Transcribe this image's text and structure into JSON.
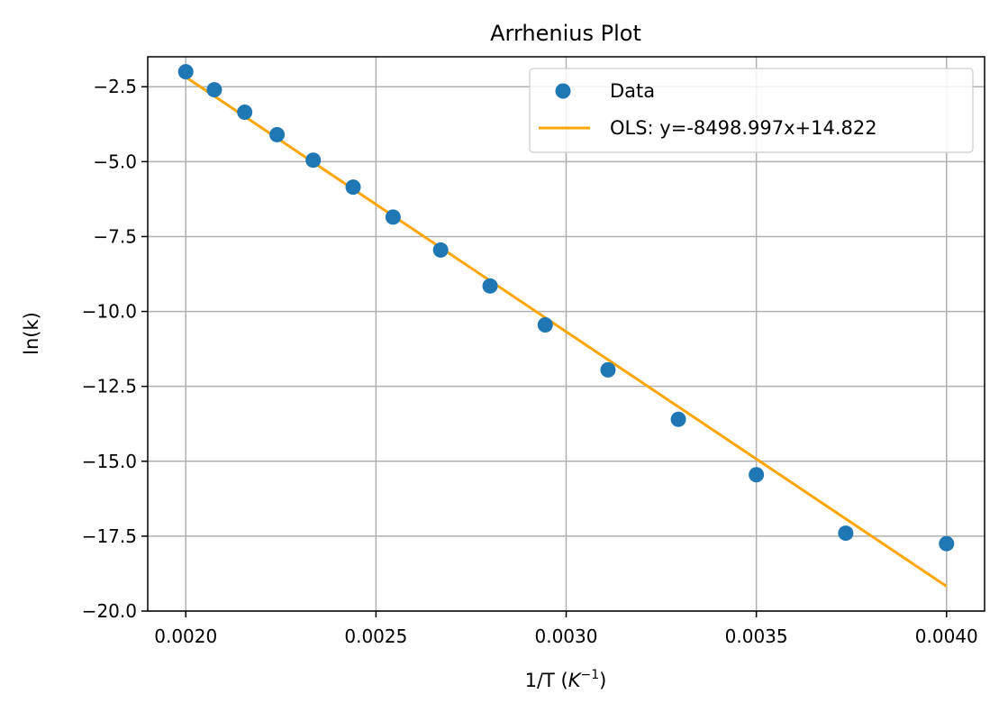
{
  "chart_data": {
    "type": "scatter",
    "title": "Arrhenius Plot",
    "xlabel": "1/T (K⁻¹)",
    "xlabel_parts": {
      "main": "1/T (",
      "italic": "K",
      "sup": "−1",
      "close": ")"
    },
    "ylabel": "ln(k)",
    "xlim": [
      0.0019,
      0.0041
    ],
    "ylim": [
      -20.0,
      -1.5
    ],
    "xticks": [
      0.002,
      0.0025,
      0.003,
      0.0035,
      0.004
    ],
    "xtick_labels": [
      "0.0020",
      "0.0025",
      "0.0030",
      "0.0035",
      "0.0040"
    ],
    "yticks": [
      -2.5,
      -5.0,
      -7.5,
      -10.0,
      -12.5,
      -15.0,
      -17.5,
      -20.0
    ],
    "ytick_labels": [
      "−2.5",
      "−5.0",
      "−7.5",
      "−10.0",
      "−12.5",
      "−15.0",
      "−17.5",
      "−20.0"
    ],
    "grid": true,
    "legend_position": "top-right",
    "series": [
      {
        "name": "Data",
        "kind": "scatter",
        "color": "#1f77b4",
        "points": [
          {
            "x": 0.002,
            "y": -2.0
          },
          {
            "x": 0.002075,
            "y": -2.6
          },
          {
            "x": 0.002155,
            "y": -3.35
          },
          {
            "x": 0.00224,
            "y": -4.1
          },
          {
            "x": 0.002335,
            "y": -4.95
          },
          {
            "x": 0.00244,
            "y": -5.85
          },
          {
            "x": 0.002545,
            "y": -6.85
          },
          {
            "x": 0.00267,
            "y": -7.95
          },
          {
            "x": 0.0028,
            "y": -9.15
          },
          {
            "x": 0.002945,
            "y": -10.45
          },
          {
            "x": 0.00311,
            "y": -11.95
          },
          {
            "x": 0.003295,
            "y": -13.6
          },
          {
            "x": 0.0035,
            "y": -15.45
          },
          {
            "x": 0.003735,
            "y": -17.4
          },
          {
            "x": 0.004,
            "y": -17.75
          }
        ]
      },
      {
        "name": "OLS: y=-8498.997x+14.822",
        "kind": "line",
        "color": "#ffa500",
        "slope": -8498.997,
        "intercept": 14.822,
        "x_range": [
          0.002,
          0.004
        ]
      }
    ]
  }
}
